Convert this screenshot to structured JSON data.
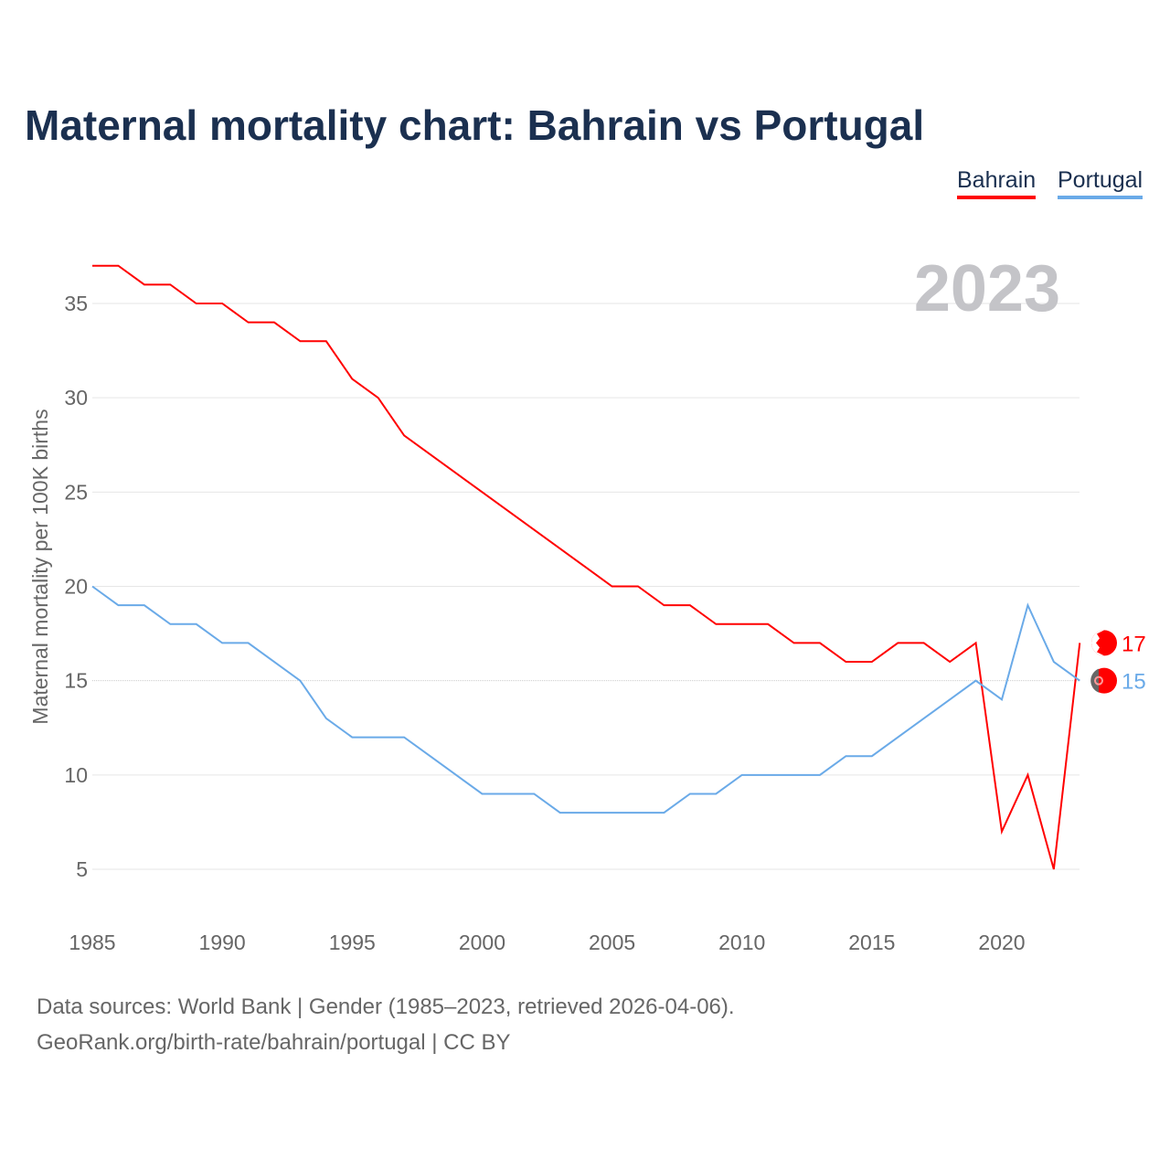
{
  "chart_data": {
    "type": "line",
    "title": "Maternal mortality chart: Bahrain vs Portugal",
    "xlabel": "",
    "ylabel": "Maternal mortality per 100K births",
    "xlim": [
      1985,
      2023
    ],
    "ylim": [
      2,
      39
    ],
    "yticks": [
      5,
      10,
      15,
      20,
      25,
      30,
      35
    ],
    "xticks": [
      1985,
      1990,
      1995,
      2000,
      2005,
      2010,
      2015,
      2020
    ],
    "grid": true,
    "legend_placement": "top-right",
    "year_label": "2023",
    "x": [
      1985,
      1986,
      1987,
      1988,
      1989,
      1990,
      1991,
      1992,
      1993,
      1994,
      1995,
      1996,
      1997,
      1998,
      1999,
      2000,
      2001,
      2002,
      2003,
      2004,
      2005,
      2006,
      2007,
      2008,
      2009,
      2010,
      2011,
      2012,
      2013,
      2014,
      2015,
      2016,
      2017,
      2018,
      2019,
      2020,
      2021,
      2022,
      2023
    ],
    "series": [
      {
        "name": "Bahrain",
        "color": "#ff0000",
        "end_label": "17",
        "values": [
          37,
          37,
          36,
          36,
          35,
          35,
          34,
          34,
          33,
          33,
          31,
          30,
          28,
          27,
          26,
          25,
          24,
          23,
          22,
          21,
          20,
          20,
          19,
          19,
          18,
          18,
          18,
          17,
          17,
          16,
          16,
          17,
          17,
          16,
          17,
          7,
          10,
          5,
          17
        ]
      },
      {
        "name": "Portugal",
        "color": "#6aaae8",
        "end_label": "15",
        "values": [
          20,
          19,
          19,
          18,
          18,
          17,
          17,
          16,
          15,
          13,
          12,
          12,
          12,
          11,
          10,
          9,
          9,
          9,
          8,
          8,
          8,
          8,
          8,
          9,
          9,
          10,
          10,
          10,
          10,
          11,
          11,
          12,
          13,
          14,
          15,
          14,
          19,
          16,
          15
        ]
      }
    ]
  },
  "footer": {
    "line1": "Data sources: World Bank | Gender (1985–2023, retrieved 2026-04-06).",
    "line2": "GeoRank.org/birth-rate/bahrain/portugal | CC BY"
  }
}
